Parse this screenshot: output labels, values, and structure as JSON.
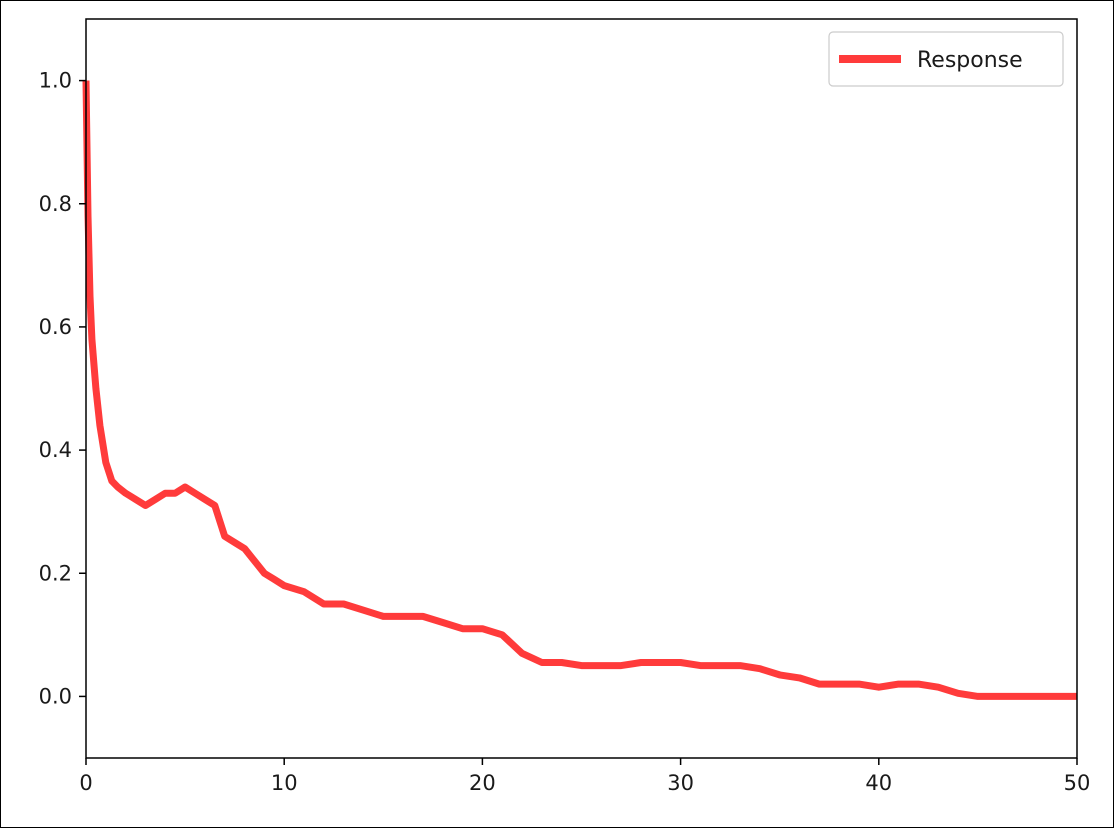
{
  "chart_data": {
    "type": "line",
    "title": "",
    "xlabel": "",
    "ylabel": "",
    "xlim": [
      0,
      50
    ],
    "ylim": [
      -0.1,
      1.1
    ],
    "xticks": [
      0,
      10,
      20,
      30,
      40,
      50
    ],
    "yticks": [
      0.0,
      0.2,
      0.4,
      0.6,
      0.8,
      1.0
    ],
    "xtick_labels": [
      "0",
      "10",
      "20",
      "30",
      "40",
      "50"
    ],
    "ytick_labels": [
      "0.0",
      "0.2",
      "0.4",
      "0.6",
      "0.8",
      "1.0"
    ],
    "grid": false,
    "legend": {
      "position": "upper-right",
      "entries": [
        "Response"
      ]
    },
    "series": [
      {
        "name": "Response",
        "color": "#ff3b3b",
        "x": [
          0,
          0.1,
          0.2,
          0.3,
          0.5,
          0.7,
          1.0,
          1.3,
          1.6,
          2.0,
          2.5,
          3.0,
          3.5,
          4.0,
          4.5,
          5.0,
          5.5,
          6.0,
          6.5,
          7.0,
          7.5,
          8.0,
          8.5,
          9.0,
          9.5,
          10.0,
          11.0,
          12.0,
          13.0,
          14.0,
          15.0,
          16.0,
          17.0,
          18.0,
          19.0,
          20.0,
          21.0,
          22.0,
          23.0,
          24.0,
          25.0,
          26.0,
          27.0,
          28.0,
          29.0,
          30.0,
          31.0,
          32.0,
          33.0,
          34.0,
          35.0,
          36.0,
          37.0,
          38.0,
          39.0,
          40.0,
          41.0,
          42.0,
          43.0,
          44.0,
          45.0,
          46.0,
          47.0,
          48.0,
          49.0,
          50.0
        ],
        "y": [
          1.0,
          0.78,
          0.65,
          0.58,
          0.5,
          0.44,
          0.38,
          0.35,
          0.34,
          0.33,
          0.32,
          0.31,
          0.32,
          0.33,
          0.33,
          0.34,
          0.33,
          0.32,
          0.31,
          0.26,
          0.25,
          0.24,
          0.22,
          0.2,
          0.19,
          0.18,
          0.17,
          0.15,
          0.15,
          0.14,
          0.13,
          0.13,
          0.13,
          0.12,
          0.11,
          0.11,
          0.1,
          0.07,
          0.055,
          0.055,
          0.05,
          0.05,
          0.05,
          0.055,
          0.055,
          0.055,
          0.05,
          0.05,
          0.05,
          0.045,
          0.035,
          0.03,
          0.02,
          0.02,
          0.02,
          0.015,
          0.02,
          0.02,
          0.015,
          0.005,
          0.0,
          0.0,
          0.0,
          0.0,
          0.0,
          0.0
        ]
      }
    ]
  }
}
